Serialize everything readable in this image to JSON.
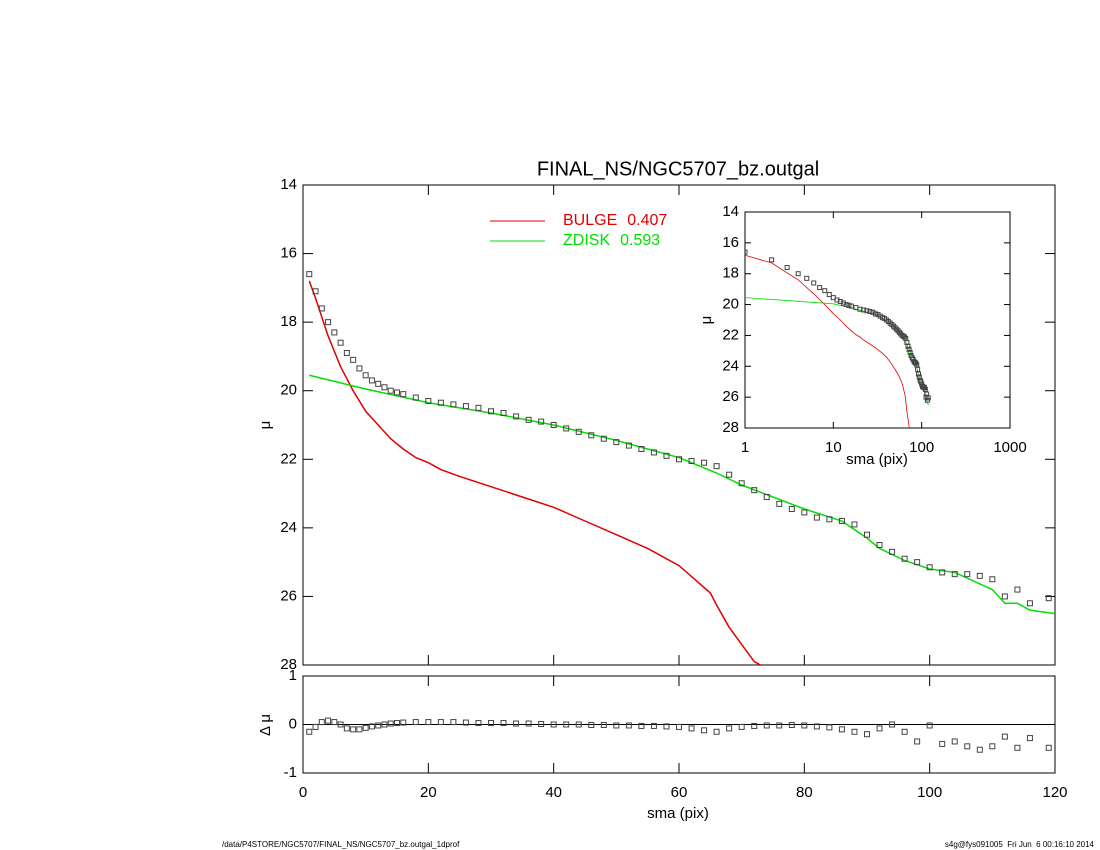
{
  "chart_data": [
    {
      "type": "line",
      "title": "FINAL_NS/NGC5707_bz.outgal",
      "ylabel": "μ",
      "xlim": [
        0,
        120
      ],
      "ylim": [
        14,
        28
      ],
      "y_inverted": true,
      "xticks": [
        0,
        20,
        40,
        60,
        80,
        100,
        120
      ],
      "yticks": [
        14,
        16,
        18,
        20,
        22,
        24,
        26,
        28
      ],
      "points": {
        "color": "#444444",
        "x": [
          1,
          2,
          3,
          4,
          5,
          6,
          7,
          8,
          9,
          10,
          11,
          12,
          13,
          14,
          15,
          16,
          18,
          20,
          22,
          24,
          26,
          28,
          30,
          32,
          34,
          36,
          38,
          40,
          42,
          44,
          46,
          48,
          50,
          52,
          54,
          56,
          58,
          60,
          62,
          64,
          66,
          68,
          70,
          72,
          74,
          76,
          78,
          80,
          82,
          84,
          86,
          88,
          90,
          92,
          94,
          96,
          98,
          100,
          102,
          104,
          106,
          108,
          110,
          112,
          114,
          116,
          119
        ],
        "values": [
          16.6,
          17.1,
          17.6,
          18.0,
          18.3,
          18.6,
          18.9,
          19.1,
          19.35,
          19.55,
          19.7,
          19.8,
          19.9,
          20.0,
          20.05,
          20.1,
          20.2,
          20.3,
          20.35,
          20.4,
          20.45,
          20.5,
          20.6,
          20.65,
          20.75,
          20.85,
          20.9,
          21.0,
          21.1,
          21.2,
          21.3,
          21.4,
          21.5,
          21.6,
          21.7,
          21.8,
          21.9,
          22.0,
          22.05,
          22.1,
          22.2,
          22.45,
          22.7,
          22.9,
          23.1,
          23.3,
          23.45,
          23.55,
          23.7,
          23.75,
          23.8,
          23.9,
          24.2,
          24.5,
          24.7,
          24.9,
          25.0,
          25.15,
          25.3,
          25.35,
          25.35,
          25.4,
          25.5,
          26.0,
          25.8,
          26.2,
          26.05
        ]
      },
      "series": [
        {
          "name": "BULGE",
          "fraction": 0.407,
          "color": "#e00000",
          "x": [
            1,
            2,
            4,
            6,
            8,
            10,
            12,
            14,
            16,
            18,
            20,
            22,
            25,
            30,
            35,
            40,
            45,
            50,
            55,
            60,
            65,
            66,
            68,
            70,
            72,
            73
          ],
          "values": [
            16.8,
            17.3,
            18.4,
            19.3,
            20.0,
            20.6,
            21.0,
            21.4,
            21.7,
            21.95,
            22.1,
            22.3,
            22.5,
            22.8,
            23.1,
            23.4,
            23.8,
            24.2,
            24.6,
            25.1,
            25.9,
            26.25,
            26.9,
            27.4,
            27.9,
            28.0
          ]
        },
        {
          "name": "ZDISK",
          "fraction": 0.593,
          "color": "#00e000",
          "x": [
            1,
            10,
            20,
            30,
            40,
            50,
            60,
            66,
            70,
            80,
            86,
            88,
            90,
            92,
            96,
            100,
            104,
            110,
            112,
            114,
            116,
            120
          ],
          "values": [
            19.55,
            19.95,
            20.35,
            20.65,
            21.0,
            21.45,
            21.95,
            22.4,
            22.75,
            23.45,
            23.8,
            24.05,
            24.3,
            24.6,
            24.95,
            25.2,
            25.3,
            25.8,
            26.2,
            26.2,
            26.4,
            26.5
          ]
        }
      ]
    },
    {
      "type": "scatter",
      "xlabel": "sma (pix)",
      "ylabel": "Δ μ",
      "xlim": [
        0,
        120
      ],
      "ylim": [
        -1,
        1
      ],
      "xticks": [
        0,
        20,
        40,
        60,
        80,
        100,
        120
      ],
      "yticks": [
        -1,
        0,
        1
      ],
      "values": [
        -0.15,
        -0.05,
        0.05,
        0.08,
        0.05,
        0.0,
        -0.08,
        -0.1,
        -0.1,
        -0.07,
        -0.04,
        -0.02,
        0.0,
        0.02,
        0.03,
        0.04,
        0.05,
        0.05,
        0.05,
        0.05,
        0.04,
        0.03,
        0.03,
        0.03,
        0.02,
        0.02,
        0.01,
        0.0,
        0.0,
        0.0,
        -0.01,
        -0.01,
        -0.02,
        -0.02,
        -0.03,
        -0.03,
        -0.04,
        -0.05,
        -0.08,
        -0.12,
        -0.15,
        -0.08,
        -0.05,
        -0.03,
        -0.02,
        -0.02,
        -0.01,
        -0.02,
        -0.04,
        -0.06,
        -0.1,
        -0.15,
        -0.2,
        -0.08,
        0.0,
        -0.15,
        -0.35,
        -0.02,
        -0.4,
        -0.35,
        -0.45,
        -0.52,
        -0.45,
        -0.25,
        -0.48,
        -0.28,
        -0.48
      ]
    },
    {
      "type": "line",
      "xscale": "log",
      "xlabel": "sma (pix)",
      "ylabel": "μ",
      "xlim": [
        1,
        1000
      ],
      "ylim": [
        14,
        28
      ],
      "y_inverted": true,
      "xticks": [
        1,
        10,
        100,
        1000
      ],
      "yticks": [
        14,
        16,
        18,
        20,
        22,
        24,
        26,
        28
      ]
    }
  ],
  "footer": {
    "left": "/data/P4STORE/NGC5707/FINAL_NS/NGC5707_bz.outgal_1dprof",
    "right": "s4g@fys091005  Fri Jun  6 00:16:10 2014"
  }
}
